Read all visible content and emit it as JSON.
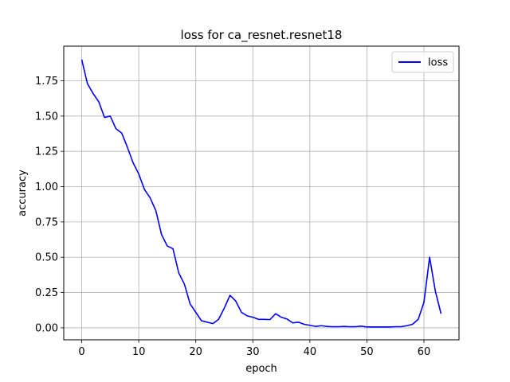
{
  "chart_data": {
    "type": "line",
    "title": "loss for ca_resnet.resnet18",
    "xlabel": "epoch",
    "ylabel": "accuracy",
    "xlim": [
      -3.15,
      66.15
    ],
    "ylim": [
      -0.085,
      1.995
    ],
    "xticks": [
      0,
      10,
      20,
      30,
      40,
      50,
      60
    ],
    "yticks": [
      0.0,
      0.25,
      0.5,
      0.75,
      1.0,
      1.25,
      1.5,
      1.75
    ],
    "grid": true,
    "legend_position": "top-right",
    "series": [
      {
        "name": "loss",
        "color": "#0000ff",
        "x": [
          0,
          1,
          2,
          3,
          4,
          5,
          6,
          7,
          8,
          9,
          10,
          11,
          12,
          13,
          14,
          15,
          16,
          17,
          18,
          19,
          20,
          21,
          22,
          23,
          24,
          25,
          26,
          27,
          28,
          29,
          30,
          31,
          32,
          33,
          34,
          35,
          36,
          37,
          38,
          39,
          40,
          41,
          42,
          43,
          44,
          45,
          46,
          47,
          48,
          49,
          50,
          51,
          52,
          53,
          54,
          55,
          56,
          57,
          58,
          59,
          60,
          61,
          62,
          63
        ],
        "values": [
          1.9,
          1.73,
          1.66,
          1.6,
          1.49,
          1.5,
          1.41,
          1.38,
          1.28,
          1.17,
          1.09,
          0.98,
          0.92,
          0.83,
          0.66,
          0.58,
          0.56,
          0.39,
          0.31,
          0.17,
          0.11,
          0.05,
          0.04,
          0.03,
          0.06,
          0.14,
          0.23,
          0.19,
          0.11,
          0.085,
          0.075,
          0.06,
          0.06,
          0.058,
          0.1,
          0.075,
          0.062,
          0.035,
          0.04,
          0.025,
          0.018,
          0.01,
          0.015,
          0.01,
          0.008,
          0.008,
          0.01,
          0.008,
          0.008,
          0.012,
          0.006,
          0.006,
          0.006,
          0.006,
          0.006,
          0.008,
          0.008,
          0.015,
          0.025,
          0.06,
          0.18,
          0.5,
          0.26,
          0.1
        ]
      }
    ]
  }
}
